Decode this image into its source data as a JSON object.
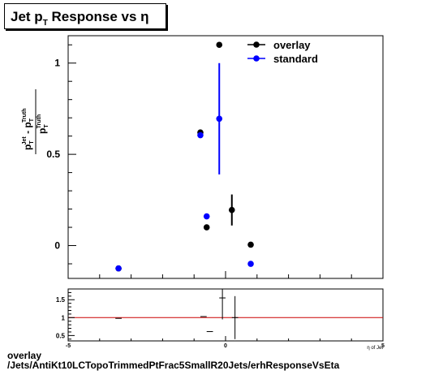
{
  "title": {
    "main": "Jet p",
    "sub": "T",
    "rest": " Response vs  η"
  },
  "ylabel": {
    "top": "p",
    "topSubJ": "T",
    "topSupJ": "Jet",
    "minus": " - p",
    "topSub2": "T",
    "topSup2": "Truth",
    "bottom": "p",
    "bottomSub": "T",
    "bottomSup": "Truth"
  },
  "xlabel": "η of Jet",
  "footer": {
    "line1": "overlay",
    "line2": "/Jets/AntiKt10LCTopoTrimmedPtFrac5SmallR20Jets/erhResponseVsEta"
  },
  "colors": {
    "overlay": "#000000",
    "standard": "#0000ff",
    "ratio_line": "#cc0000"
  },
  "chart_data": [
    {
      "type": "scatter",
      "xlim": [
        -5,
        5
      ],
      "ylim": [
        -0.18,
        1.15
      ],
      "yticks": [
        0,
        0.5,
        1
      ],
      "ytick_labels": [
        "0",
        "0.5",
        "1"
      ],
      "legend": "top-right",
      "series": [
        {
          "name": "overlay",
          "points": [
            {
              "x": -3.4,
              "y": -0.125,
              "yerr": 0
            },
            {
              "x": -0.8,
              "y": 0.62,
              "yerr": 0
            },
            {
              "x": -0.6,
              "y": 0.1,
              "yerr": 0
            },
            {
              "x": -0.2,
              "y": 1.1,
              "yerr": 0
            },
            {
              "x": 0.2,
              "y": 0.195,
              "yerr": 0.085
            },
            {
              "x": 0.8,
              "y": 0.005,
              "yerr": 0
            }
          ]
        },
        {
          "name": "standard",
          "points": [
            {
              "x": -3.4,
              "y": -0.125,
              "yerr": 0
            },
            {
              "x": -0.8,
              "y": 0.605,
              "yerr": 0
            },
            {
              "x": -0.6,
              "y": 0.16,
              "yerr": 0
            },
            {
              "x": -0.2,
              "y": 0.695,
              "yerr": 0.305
            },
            {
              "x": 0.8,
              "y": -0.1,
              "yerr": 0
            }
          ]
        }
      ]
    },
    {
      "type": "scatter",
      "xlim": [
        -5,
        5
      ],
      "ylim": [
        0.35,
        1.8
      ],
      "yticks": [
        0.5,
        1,
        1.5
      ],
      "ytick_labels": [
        "0.5",
        "1",
        "1.5"
      ],
      "xticks": [
        -5,
        0,
        5
      ],
      "xtick_labels": [
        "-5",
        "0",
        "5"
      ],
      "reference_line": 1,
      "points": [
        {
          "x": -3.4,
          "y": 0.98,
          "xerr": 0.1,
          "yerr": 0
        },
        {
          "x": -0.7,
          "y": 1.03,
          "xerr": 0.1,
          "yerr": 0
        },
        {
          "x": -0.5,
          "y": 0.61,
          "xerr": 0.1,
          "yerr": 0
        },
        {
          "x": -0.1,
          "y": 1.55,
          "xerr": 0.1,
          "yerr": 0.6
        },
        {
          "x": 0.3,
          "y": 1.0,
          "xerr": 0.1,
          "yerr": 0.6
        }
      ]
    }
  ]
}
